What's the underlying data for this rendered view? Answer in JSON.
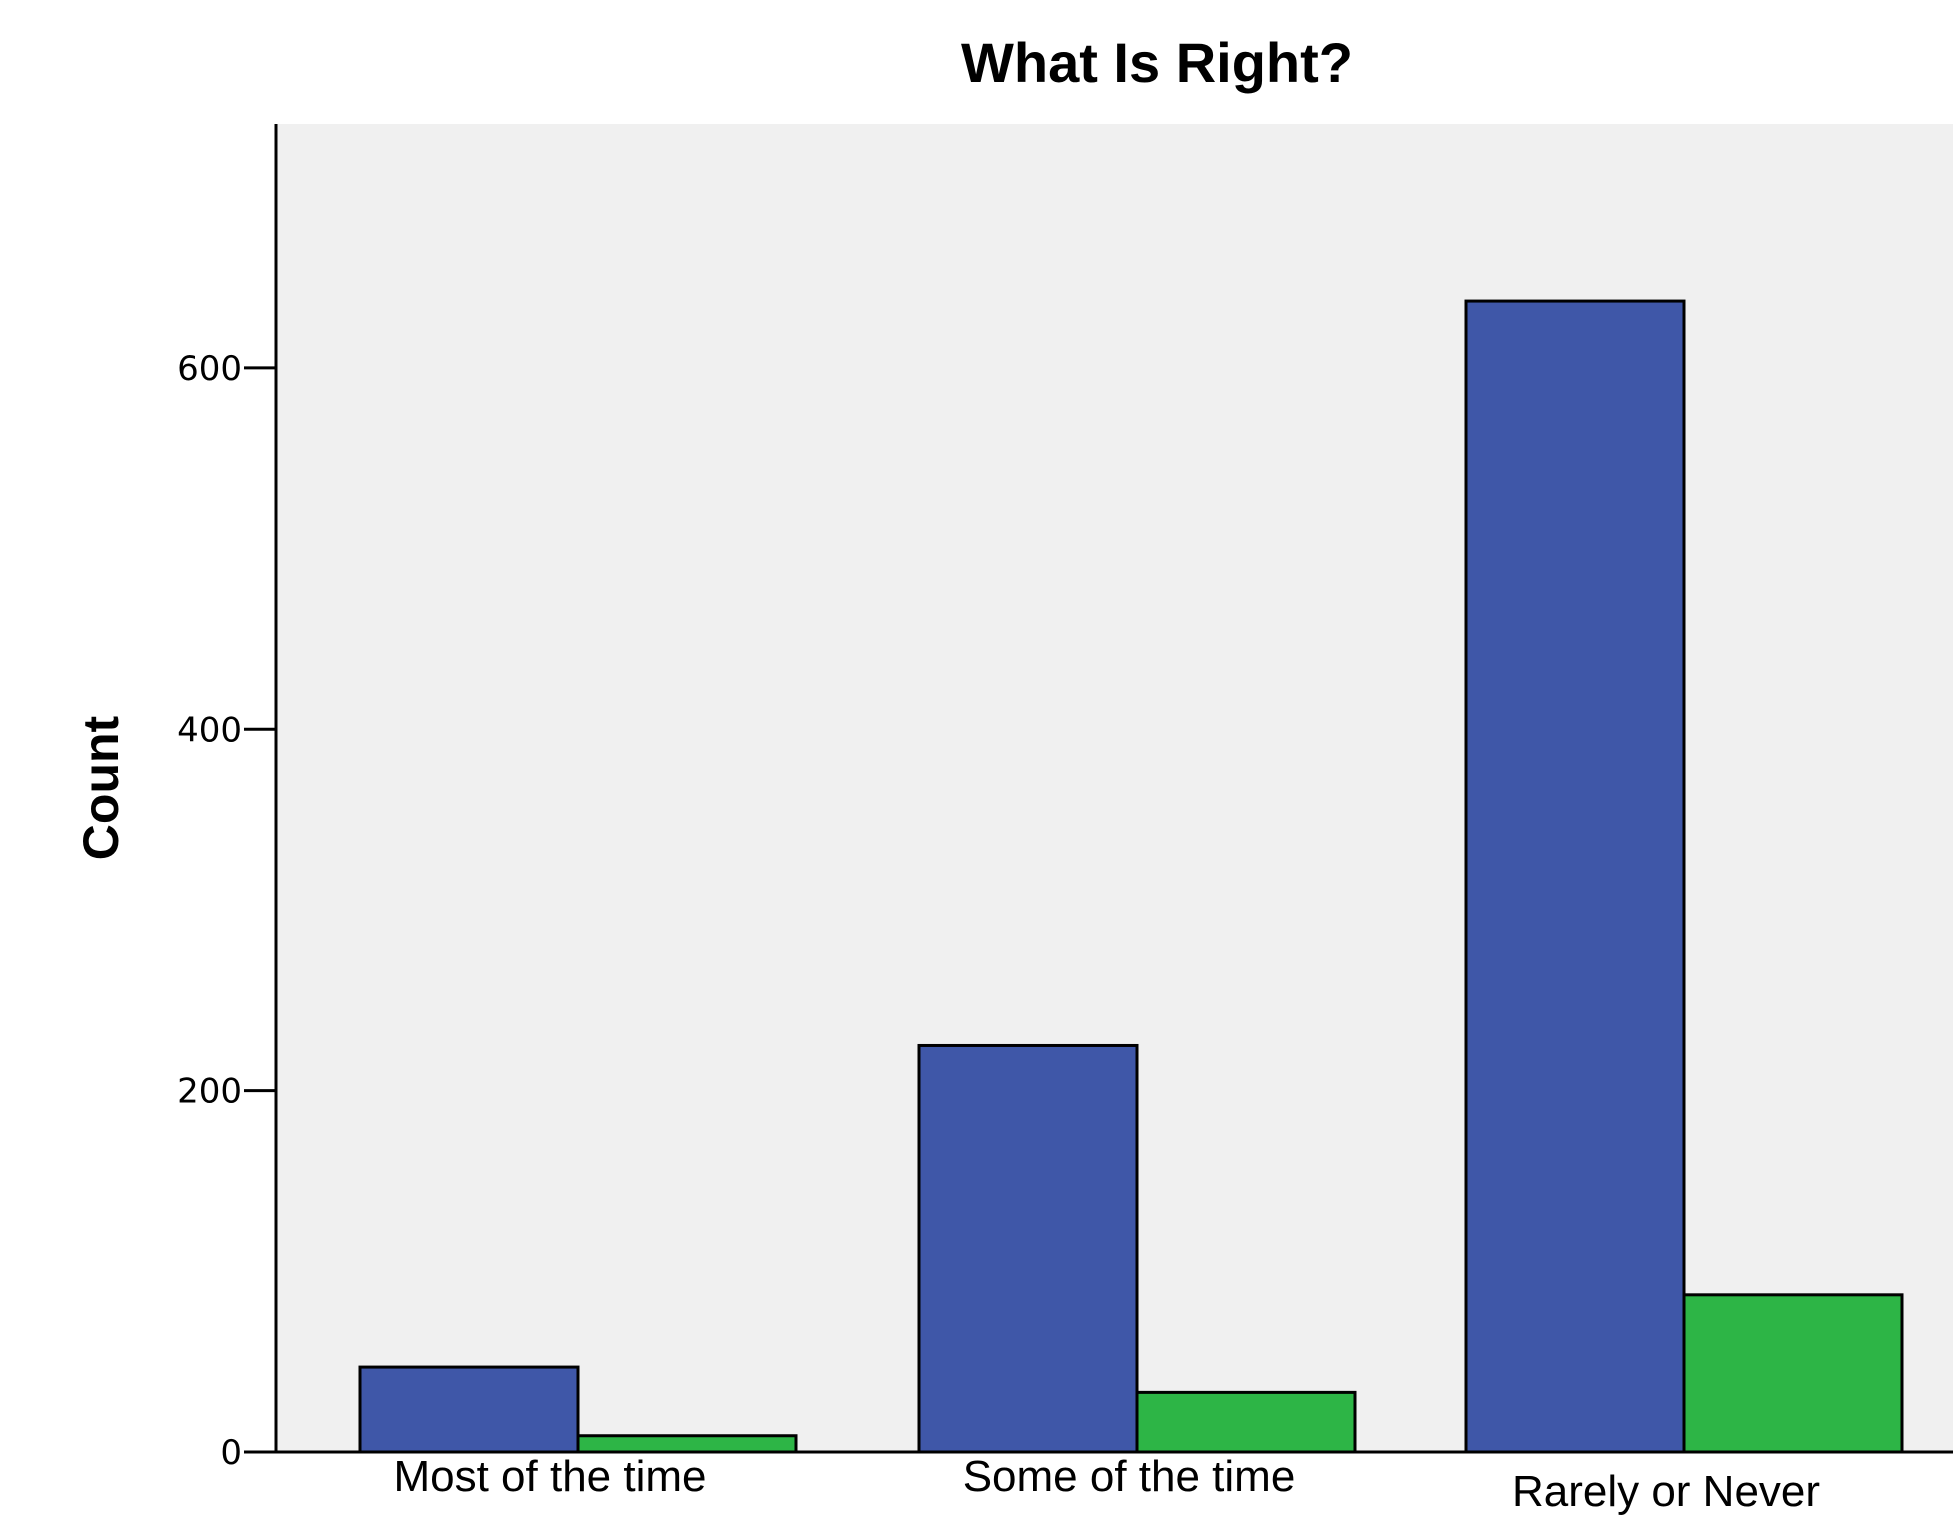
{
  "chart_data": {
    "type": "bar",
    "title": "What Is Right?",
    "xlabel": "",
    "ylabel": "Count",
    "categories": [
      "Most of the time",
      "Some of the time",
      "Rarely or Never"
    ],
    "series": [
      {
        "values": [
          47,
          225,
          637
        ],
        "color": "#3f57a8"
      },
      {
        "values": [
          9,
          33,
          87
        ],
        "color": "#2db546"
      }
    ],
    "yticks": [
      0,
      200,
      400,
      600
    ],
    "ylim": [
      0,
      735
    ],
    "grid": false,
    "plot_background": "#f0f0f0"
  }
}
